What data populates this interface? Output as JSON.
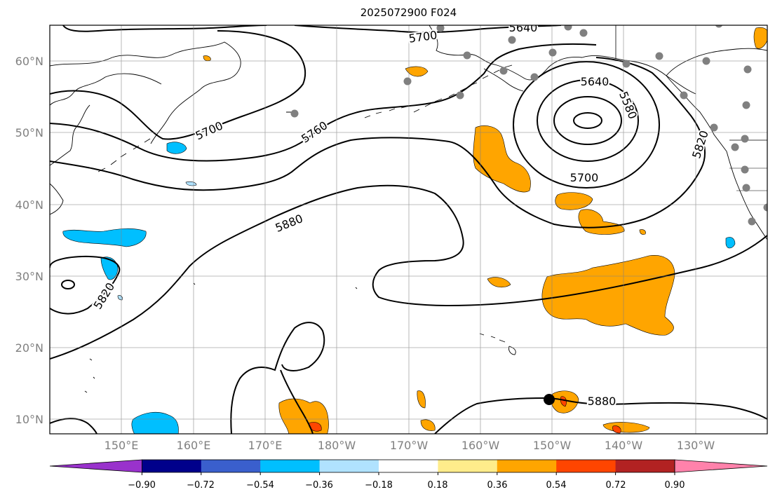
{
  "map": {
    "title": "2025072900 F024",
    "lat_labels": [
      "60°N",
      "50°N",
      "40°N",
      "30°N",
      "20°N",
      "10°N"
    ],
    "lon_labels": [
      "150°E",
      "160°E",
      "170°E",
      "180°W",
      "170°W",
      "160°W",
      "150°W",
      "140°W",
      "130°W"
    ],
    "contour_labels": [
      "5700",
      "5640",
      "5700",
      "5760",
      "5640",
      "5580",
      "5820",
      "5700",
      "5880",
      "5820",
      "5880"
    ],
    "colorbar": {
      "ticks": [
        "−0.90",
        "−0.72",
        "−0.54",
        "−0.36",
        "−0.18",
        "0.18",
        "0.36",
        "0.54",
        "0.72",
        "0.90"
      ],
      "colors": [
        "#9932cc",
        "#00008b",
        "#3a5fcd",
        "#00bfff",
        "#b0e2ff",
        "#ffffff",
        "#ffec8b",
        "#ffa500",
        "#ff4500",
        "#b22222",
        "#ff82ab"
      ]
    }
  }
}
